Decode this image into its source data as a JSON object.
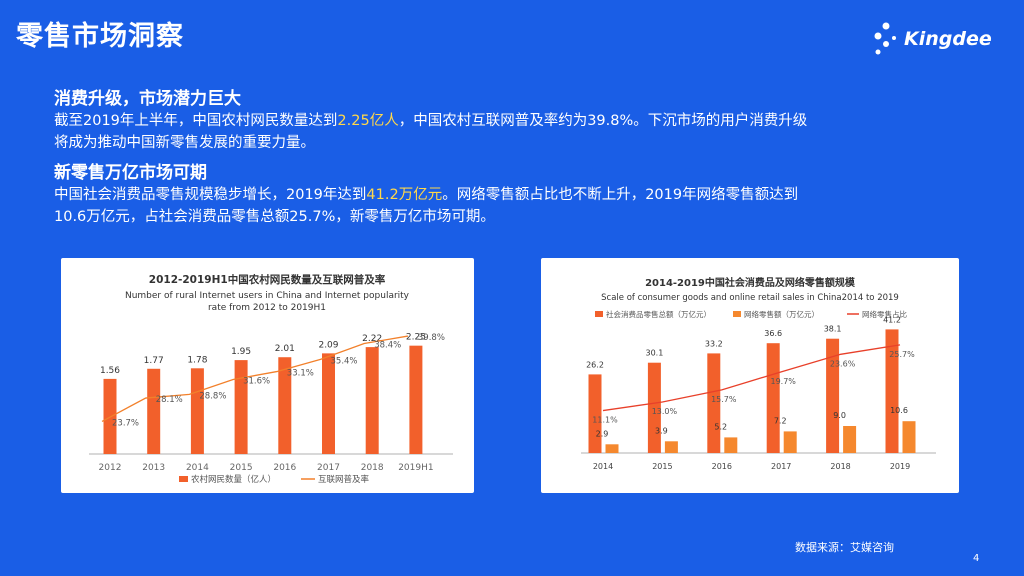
{
  "header": {
    "title": "零售市场洞察",
    "logo_text": "Kingdee"
  },
  "sections": [
    {
      "heading": "消费升级，市场潜力巨大",
      "lines": [
        {
          "pre": "截至2019年上半年，中国农村网民数量达到",
          "hl": "2.25亿人",
          "post": "，中国农村互联网普及率约为39.8%。下沉市场的用户消费升级"
        },
        {
          "pre": "将成为推动中国新零售发展的重要力量。",
          "hl": "",
          "post": ""
        }
      ]
    },
    {
      "heading": "新零售万亿市场可期",
      "lines": [
        {
          "pre": "中国社会消费品零售规模稳步增长，2019年达到",
          "hl": "41.2万亿元",
          "post": "。网络零售额占比也不断上升，2019年网络零售额达到"
        },
        {
          "pre": "10.6万亿元，占社会消费品零售总额25.7%，新零售万亿市场可期。",
          "hl": "",
          "post": ""
        }
      ]
    }
  ],
  "chart_data": [
    {
      "type": "bar",
      "title": "2012-2019H1中国农村网民数量及互联网普及率",
      "subtitle_lines": [
        "Number of rural Internet users in China and Internet popularity",
        "rate from 2012 to 2019H1"
      ],
      "categories": [
        "2012",
        "2013",
        "2014",
        "2015",
        "2016",
        "2017",
        "2018",
        "2019H1"
      ],
      "series": [
        {
          "name": "农村网民数量（亿人）",
          "kind": "bar",
          "color": "#f2602b",
          "values": [
            1.56,
            1.77,
            1.78,
            1.95,
            2.01,
            2.09,
            2.22,
            2.25
          ],
          "labels": [
            "1.56",
            "1.77",
            "1.78",
            "1.95",
            "2.01",
            "2.09",
            "2.22",
            "2.25"
          ]
        },
        {
          "name": "互联网普及率",
          "kind": "line",
          "color": "#f2802b",
          "values": [
            23.7,
            28.1,
            28.8,
            31.6,
            33.1,
            35.4,
            38.4,
            39.8
          ],
          "labels": [
            "23.7%",
            "28.1%",
            "28.8%",
            "31.6%",
            "33.1%",
            "35.4%",
            "38.4%",
            "39.8%"
          ]
        }
      ],
      "legend": "bottom"
    },
    {
      "type": "bar",
      "title": "2014-2019中国社会消费品及网络零售额规模",
      "subtitle_lines": [
        "Scale of consumer goods and online retail sales in China2014 to 2019"
      ],
      "categories": [
        "2014",
        "2015",
        "2016",
        "2017",
        "2018",
        "2019"
      ],
      "series": [
        {
          "name": "社会消费品零售总额（万亿元）",
          "kind": "bar",
          "color": "#f2602b",
          "values": [
            26.2,
            30.1,
            33.2,
            36.6,
            38.1,
            41.2
          ],
          "labels": [
            "26.2",
            "30.1",
            "33.2",
            "36.6",
            "38.1",
            "41.2"
          ]
        },
        {
          "name": "网络零售额（万亿元）",
          "kind": "bar",
          "color": "#f5882e",
          "values": [
            2.9,
            3.9,
            5.2,
            7.2,
            9.0,
            10.6
          ],
          "labels": [
            "2.9",
            "3.9",
            "5.2",
            "7.2",
            "9.0",
            "10.6"
          ]
        },
        {
          "name": "网络零售占比",
          "kind": "line",
          "color": "#e8402a",
          "values": [
            11.1,
            13.0,
            15.7,
            19.7,
            23.6,
            25.7
          ],
          "labels": [
            "11.1%",
            "13.0%",
            "15.7%",
            "19.7%",
            "23.6%",
            "25.7%"
          ]
        }
      ],
      "legend": "top"
    }
  ],
  "footer": {
    "source": "数据来源：艾媒咨询",
    "page_number": "4"
  }
}
